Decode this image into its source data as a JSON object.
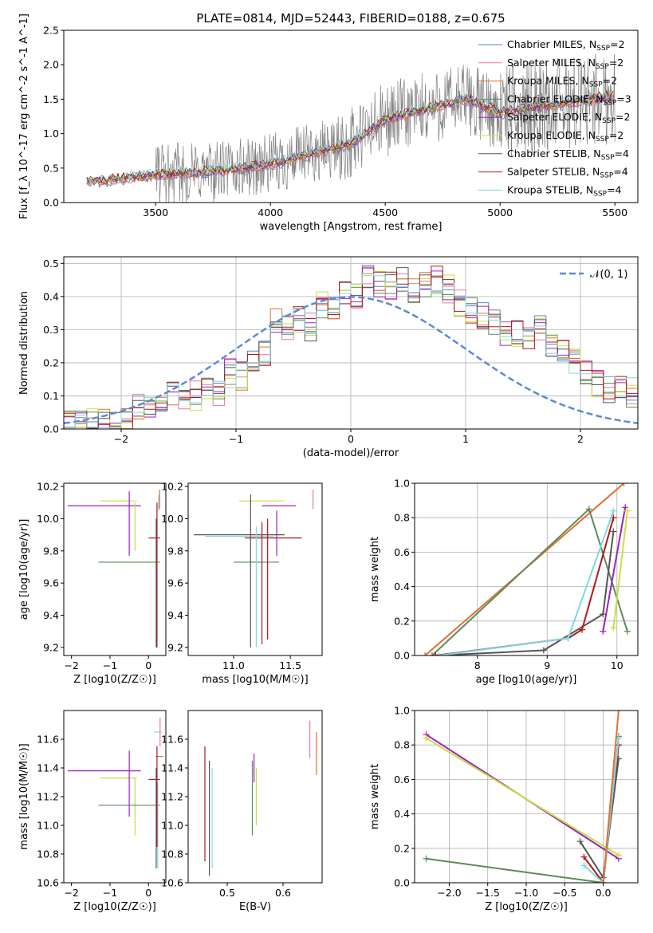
{
  "figure_title": "PLATE=0814, MJD=52443, FIBERID=0188, z=0.675",
  "chart_data": [
    {
      "id": "spectrum",
      "type": "line",
      "title": "PLATE=0814, MJD=52443, FIBERID=0188, z=0.675",
      "xlabel": "wavelength [Angstrom, rest frame]",
      "ylabel": "Flux [f_λ 10^-17 erg cm^-2 s^-1 A^-1]",
      "xlim": [
        3100,
        5600
      ],
      "ylim": [
        0,
        2.5
      ],
      "xticks": [
        3500,
        4000,
        4500,
        5000,
        5500
      ],
      "yticks": [
        0.0,
        0.5,
        1.0,
        1.5,
        2.0,
        2.5
      ],
      "legend_position": "top-right",
      "series": [
        {
          "name": "Chabrier MILES, N_SSP=2",
          "color": "#5b7fd0"
        },
        {
          "name": "Salpeter MILES, N_SSP=2",
          "color": "#e87aa6"
        },
        {
          "name": "Kroupa MILES, N_SSP=2",
          "color": "#e07030"
        },
        {
          "name": "Chabrier ELODIE, N_SSP=3",
          "color": "#5e8a5e"
        },
        {
          "name": "Salpeter ELODIE, N_SSP=2",
          "color": "#a020c0"
        },
        {
          "name": "Kroupa ELODIE, N_SSP=2",
          "color": "#c8e040"
        },
        {
          "name": "Chabrier STELIB, N_SSP=4",
          "color": "#555555"
        },
        {
          "name": "Salpeter STELIB, N_SSP=4",
          "color": "#b01818"
        },
        {
          "name": "Kroupa STELIB, N_SSP=4",
          "color": "#80d8e0"
        }
      ],
      "data_color": "#808080",
      "model_trend": {
        "x": [
          3200,
          3500,
          3750,
          4000,
          4350,
          4500,
          4850,
          5000,
          5500
        ],
        "y": [
          0.3,
          0.4,
          0.45,
          0.55,
          0.85,
          1.2,
          1.5,
          1.3,
          1.55
        ]
      }
    },
    {
      "id": "residuals",
      "type": "histogram",
      "xlabel": "(data-model)/error",
      "ylabel": "Normed distribution",
      "xlim": [
        -2.5,
        2.5
      ],
      "ylim": [
        0,
        0.52
      ],
      "xticks": [
        -2,
        -1,
        0,
        1,
        2
      ],
      "yticks": [
        0.0,
        0.1,
        0.2,
        0.3,
        0.4,
        0.5
      ],
      "grid": true,
      "legend_position": "top-right",
      "reference_curve": {
        "name": "𝒩(0, 1)",
        "mean": 0,
        "sigma": 1,
        "color": "#5b8ad6"
      },
      "bin_width": 0.1,
      "bin_start": -2.5,
      "base_heights": [
        0.01,
        0.01,
        0.02,
        0.02,
        0.03,
        0.04,
        0.07,
        0.08,
        0.09,
        0.1,
        0.08,
        0.1,
        0.12,
        0.11,
        0.17,
        0.16,
        0.2,
        0.23,
        0.32,
        0.3,
        0.33,
        0.31,
        0.37,
        0.36,
        0.42,
        0.4,
        0.45,
        0.44,
        0.43,
        0.46,
        0.42,
        0.44,
        0.45,
        0.42,
        0.38,
        0.36,
        0.34,
        0.33,
        0.28,
        0.29,
        0.27,
        0.3,
        0.26,
        0.24,
        0.2,
        0.18,
        0.14,
        0.12,
        0.12,
        0.11,
        0.1,
        0.09,
        0.08,
        0.07,
        0.06,
        0.05,
        0.05,
        0.04,
        0.04,
        0.04
      ]
    },
    {
      "id": "age_vs_Z",
      "type": "errorbar",
      "xlabel": "Z [log10(Z/Z☉)]",
      "ylabel": "age  [log10(age/yr)]",
      "xlim": [
        -2.2,
        0.45
      ],
      "ylim": [
        9.15,
        10.22
      ],
      "xticks": [
        -2,
        -1,
        0
      ],
      "yticks": [
        9.2,
        9.4,
        9.6,
        9.8,
        10.0,
        10.2
      ],
      "points": [
        {
          "color": "#a020c0",
          "x": -0.9,
          "xerr": [
            1.2,
            0.7
          ],
          "y": 10.08,
          "yerr": [
            0.0,
            0.0
          ]
        },
        {
          "color": "#c8e040",
          "x": -0.3,
          "xerr": [
            0.95,
            0.0
          ],
          "y": 10.11,
          "yerr": [
            0.0,
            0.0
          ]
        },
        {
          "color": "#a020c0",
          "x": -0.5,
          "xerr": [
            0.0,
            0.0
          ],
          "y": 9.95,
          "yerr": [
            0.18,
            0.22
          ]
        },
        {
          "color": "#c8e040",
          "x": -0.35,
          "xerr": [
            0.0,
            0.0
          ],
          "y": 10.0,
          "yerr": [
            0.2,
            0.1
          ]
        },
        {
          "color": "#5e8a5e",
          "x": -0.4,
          "xerr": [
            0.9,
            0.7
          ],
          "y": 9.73,
          "yerr": [
            0.0,
            0.0
          ]
        },
        {
          "color": "#b01818",
          "x": 0.1,
          "xerr": [
            0.1,
            0.2
          ],
          "y": 9.88,
          "yerr": [
            0.0,
            0.0
          ]
        },
        {
          "color": "#555555",
          "x": 0.2,
          "xerr": [
            0.0,
            0.0
          ],
          "y": 9.55,
          "yerr": [
            0.35,
            0.45
          ]
        },
        {
          "color": "#b01818",
          "x": 0.22,
          "xerr": [
            0.0,
            0.0
          ],
          "y": 9.6,
          "yerr": [
            0.4,
            0.5
          ]
        },
        {
          "color": "#80d8e0",
          "x": 0.26,
          "xerr": [
            0.0,
            0.0
          ],
          "y": 10.1,
          "yerr": [
            0.05,
            0.05
          ]
        },
        {
          "color": "#e07030",
          "x": 0.29,
          "xerr": [
            0.0,
            0.0
          ],
          "y": 10.12,
          "yerr": [
            0.06,
            0.06
          ]
        }
      ]
    },
    {
      "id": "age_vs_mass",
      "type": "errorbar",
      "xlabel": "mass [log10(M/M☉)]",
      "ylabel": "",
      "xlim": [
        10.6,
        11.78
      ],
      "ylim": [
        9.15,
        10.22
      ],
      "xticks": [
        11.0,
        11.5
      ],
      "yticks": [
        9.2,
        9.4,
        9.6,
        9.8,
        10.0,
        10.2
      ],
      "points": [
        {
          "color": "#c8e040",
          "x": 11.25,
          "xerr": [
            0.2,
            0.2
          ],
          "y": 10.11,
          "yerr": [
            0.0,
            0.0
          ]
        },
        {
          "color": "#a020c0",
          "x": 11.4,
          "xerr": [
            0.15,
            0.15
          ],
          "y": 10.08,
          "yerr": [
            0.0,
            0.0
          ]
        },
        {
          "color": "#e87aa6",
          "x": 11.7,
          "xerr": [
            0.0,
            0.0
          ],
          "y": 10.12,
          "yerr": [
            0.06,
            0.06
          ]
        },
        {
          "color": "#555555",
          "x": 11.05,
          "xerr": [
            0.4,
            0.4
          ],
          "y": 9.9,
          "yerr": [
            0.0,
            0.0
          ]
        },
        {
          "color": "#80d8e0",
          "x": 11.05,
          "xerr": [
            0.3,
            0.3
          ],
          "y": 9.89,
          "yerr": [
            0.0,
            0.0
          ]
        },
        {
          "color": "#b01818",
          "x": 11.3,
          "xerr": [
            0.2,
            0.3
          ],
          "y": 9.88,
          "yerr": [
            0.0,
            0.0
          ]
        },
        {
          "color": "#5e8a5e",
          "x": 11.2,
          "xerr": [
            0.2,
            0.2
          ],
          "y": 9.73,
          "yerr": [
            0.0,
            0.0
          ]
        },
        {
          "color": "#555555",
          "x": 11.15,
          "xerr": [
            0.0,
            0.0
          ],
          "y": 9.6,
          "yerr": [
            0.4,
            0.55
          ]
        },
        {
          "color": "#80d8e0",
          "x": 11.2,
          "xerr": [
            0.0,
            0.0
          ],
          "y": 9.55,
          "yerr": [
            0.35,
            0.4
          ]
        },
        {
          "color": "#b01818",
          "x": 11.25,
          "xerr": [
            0.0,
            0.0
          ],
          "y": 9.6,
          "yerr": [
            0.38,
            0.38
          ]
        },
        {
          "color": "#b01818",
          "x": 11.3,
          "xerr": [
            0.0,
            0.0
          ],
          "y": 9.65,
          "yerr": [
            0.4,
            0.35
          ]
        },
        {
          "color": "#a020c0",
          "x": 11.38,
          "xerr": [
            0.0,
            0.0
          ],
          "y": 9.95,
          "yerr": [
            0.18,
            0.1
          ]
        }
      ]
    },
    {
      "id": "massweight_vs_age",
      "type": "line",
      "xlabel": "age  [log10(age/yr)]",
      "ylabel": "mass weight",
      "xlim": [
        7.1,
        10.3
      ],
      "ylim": [
        0,
        1.0
      ],
      "xticks": [
        8,
        9,
        10
      ],
      "yticks": [
        0.0,
        0.2,
        0.4,
        0.6,
        0.8,
        1.0
      ],
      "grid": true,
      "series": [
        {
          "color": "#e07030",
          "x": [
            7.25,
            10.1
          ],
          "y": [
            0.0,
            1.0
          ]
        },
        {
          "color": "#5e8a5e",
          "x": [
            7.35,
            9.6,
            10.15
          ],
          "y": [
            0.0,
            0.85,
            0.14
          ]
        },
        {
          "color": "#555555",
          "x": [
            7.4,
            8.95,
            9.8,
            9.95
          ],
          "y": [
            0.0,
            0.03,
            0.24,
            0.72
          ]
        },
        {
          "color": "#b01818",
          "x": [
            7.4,
            9.3,
            9.5,
            9.95
          ],
          "y": [
            0.0,
            0.1,
            0.15,
            0.8
          ]
        },
        {
          "color": "#80d8e0",
          "x": [
            7.45,
            9.3,
            9.95
          ],
          "y": [
            0.0,
            0.1,
            0.84
          ]
        },
        {
          "color": "#a020c0",
          "x": [
            9.8,
            10.12
          ],
          "y": [
            0.14,
            0.86
          ]
        },
        {
          "color": "#c8e040",
          "x": [
            9.95,
            10.15
          ],
          "y": [
            0.16,
            0.84
          ]
        }
      ]
    },
    {
      "id": "mass_vs_Z",
      "type": "errorbar",
      "xlabel": "Z [log10(Z/Z☉)]",
      "ylabel": "mass [log10(M/M☉)]",
      "xlim": [
        -2.2,
        0.45
      ],
      "ylim": [
        10.6,
        11.8
      ],
      "xticks": [
        -2,
        -1,
        0
      ],
      "yticks": [
        10.6,
        10.8,
        11.0,
        11.2,
        11.4,
        11.6
      ],
      "points": [
        {
          "color": "#a020c0",
          "x": -0.9,
          "xerr": [
            1.2,
            0.7
          ],
          "y": 11.38,
          "yerr": [
            0.0,
            0.0
          ]
        },
        {
          "color": "#c8e040",
          "x": -0.3,
          "xerr": [
            0.95,
            0.0
          ],
          "y": 11.33,
          "yerr": [
            0.0,
            0.0
          ]
        },
        {
          "color": "#a020c0",
          "x": -0.5,
          "xerr": [
            0.0,
            0.0
          ],
          "y": 11.3,
          "yerr": [
            0.24,
            0.22
          ]
        },
        {
          "color": "#c8e040",
          "x": -0.35,
          "xerr": [
            0.0,
            0.0
          ],
          "y": 11.15,
          "yerr": [
            0.22,
            0.18
          ]
        },
        {
          "color": "#5e8a5e",
          "x": -0.4,
          "xerr": [
            0.9,
            0.7
          ],
          "y": 11.14,
          "yerr": [
            0.0,
            0.0
          ]
        },
        {
          "color": "#b01818",
          "x": 0.1,
          "xerr": [
            0.1,
            0.2
          ],
          "y": 11.32,
          "yerr": [
            0.0,
            0.0
          ]
        },
        {
          "color": "#e87aa6",
          "x": 0.3,
          "xerr": [
            0.0,
            0.0
          ],
          "y": 11.65,
          "yerr": [
            0.1,
            0.1
          ]
        },
        {
          "color": "#80d8e0",
          "x": 0.25,
          "xerr": [
            0.1,
            0.1
          ],
          "y": 11.65,
          "yerr": [
            0.0,
            0.0
          ]
        },
        {
          "color": "#e07030",
          "x": 0.28,
          "xerr": [
            0.1,
            0.1
          ],
          "y": 11.48,
          "yerr": [
            0.0,
            0.0
          ]
        },
        {
          "color": "#555555",
          "x": 0.2,
          "xerr": [
            0.0,
            0.0
          ],
          "y": 11.05,
          "yerr": [
            0.35,
            0.35
          ]
        },
        {
          "color": "#80d8e0",
          "x": 0.24,
          "xerr": [
            0.0,
            0.0
          ],
          "y": 11.0,
          "yerr": [
            0.3,
            0.3
          ]
        },
        {
          "color": "#b01818",
          "x": 0.22,
          "xerr": [
            0.0,
            0.0
          ],
          "y": 11.2,
          "yerr": [
            0.35,
            0.35
          ]
        }
      ]
    },
    {
      "id": "mass_vs_EBV",
      "type": "errorbar",
      "xlabel": "E(B-V)",
      "ylabel": "",
      "xlim": [
        0.43,
        0.67
      ],
      "ylim": [
        10.6,
        11.8
      ],
      "xticks": [
        0.5,
        0.6
      ],
      "yticks": [
        10.6,
        10.8,
        11.0,
        11.2,
        11.4,
        11.6
      ],
      "points": [
        {
          "color": "#b01818",
          "x": 0.46,
          "xerr": [
            0.0,
            0.0
          ],
          "y": 11.15,
          "yerr": [
            0.4,
            0.4
          ]
        },
        {
          "color": "#555555",
          "x": 0.468,
          "xerr": [
            0.0,
            0.0
          ],
          "y": 11.05,
          "yerr": [
            0.4,
            0.4
          ]
        },
        {
          "color": "#80d8e0",
          "x": 0.473,
          "xerr": [
            0.0,
            0.0
          ],
          "y": 11.05,
          "yerr": [
            0.35,
            0.35
          ]
        },
        {
          "color": "#5e8a5e",
          "x": 0.545,
          "xerr": [
            0.0,
            0.0
          ],
          "y": 11.2,
          "yerr": [
            0.27,
            0.25
          ]
        },
        {
          "color": "#a020c0",
          "x": 0.548,
          "xerr": [
            0.0,
            0.0
          ],
          "y": 11.4,
          "yerr": [
            0.1,
            0.1
          ]
        },
        {
          "color": "#c8e040",
          "x": 0.552,
          "xerr": [
            0.0,
            0.0
          ],
          "y": 11.2,
          "yerr": [
            0.2,
            0.2
          ]
        },
        {
          "color": "#e87aa6",
          "x": 0.648,
          "xerr": [
            0.0,
            0.0
          ],
          "y": 11.6,
          "yerr": [
            0.13,
            0.13
          ]
        },
        {
          "color": "#e07030",
          "x": 0.66,
          "xerr": [
            0.0,
            0.0
          ],
          "y": 11.5,
          "yerr": [
            0.15,
            0.15
          ]
        }
      ]
    },
    {
      "id": "massweight_vs_Z",
      "type": "line",
      "xlabel": "Z [log10(Z/Z☉)]",
      "ylabel": "mass weight",
      "xlim": [
        -2.45,
        0.45
      ],
      "ylim": [
        0,
        1.0
      ],
      "xticks": [
        -2.0,
        -1.5,
        -1.0,
        -0.5,
        0.0
      ],
      "yticks": [
        0.0,
        0.2,
        0.4,
        0.6,
        0.8,
        1.0
      ],
      "grid": true,
      "series": [
        {
          "color": "#a020c0",
          "x": [
            -2.3,
            0.2
          ],
          "y": [
            0.86,
            0.14
          ]
        },
        {
          "color": "#c8e040",
          "x": [
            -2.3,
            0.2
          ],
          "y": [
            0.84,
            0.16
          ]
        },
        {
          "color": "#5e8a5e",
          "x": [
            -2.3,
            0.0,
            0.2
          ],
          "y": [
            0.14,
            0.0,
            0.85
          ]
        },
        {
          "color": "#555555",
          "x": [
            -0.3,
            0.0,
            0.2
          ],
          "y": [
            0.24,
            0.03,
            0.72
          ]
        },
        {
          "color": "#b01818",
          "x": [
            -0.25,
            0.0,
            0.2
          ],
          "y": [
            0.15,
            0.0,
            0.8
          ]
        },
        {
          "color": "#80d8e0",
          "x": [
            -0.25,
            0.0,
            0.2
          ],
          "y": [
            0.1,
            0.0,
            0.84
          ]
        },
        {
          "color": "#e07030",
          "x": [
            0.0,
            0.2
          ],
          "y": [
            0.0,
            1.0
          ]
        }
      ]
    }
  ]
}
